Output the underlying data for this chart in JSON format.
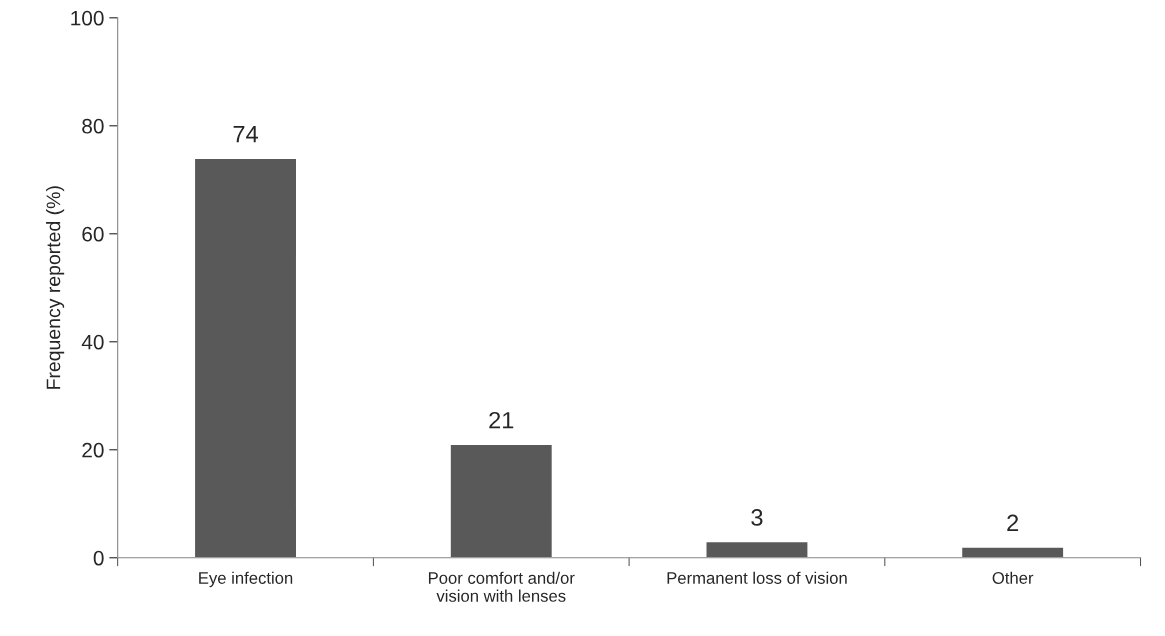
{
  "chart_data": {
    "type": "bar",
    "ylabel": "Frequency reported (%)",
    "categories": [
      "Eye infection",
      "Poor comfort and/or\nvision with lenses",
      "Permanent loss of vision",
      "Other"
    ],
    "values": [
      74,
      21,
      3,
      2
    ],
    "color": "#595959",
    "ylim": [
      0,
      100
    ],
    "yticks": [
      0,
      20,
      40,
      60,
      80,
      100
    ],
    "grid": false,
    "data_labels": true
  }
}
